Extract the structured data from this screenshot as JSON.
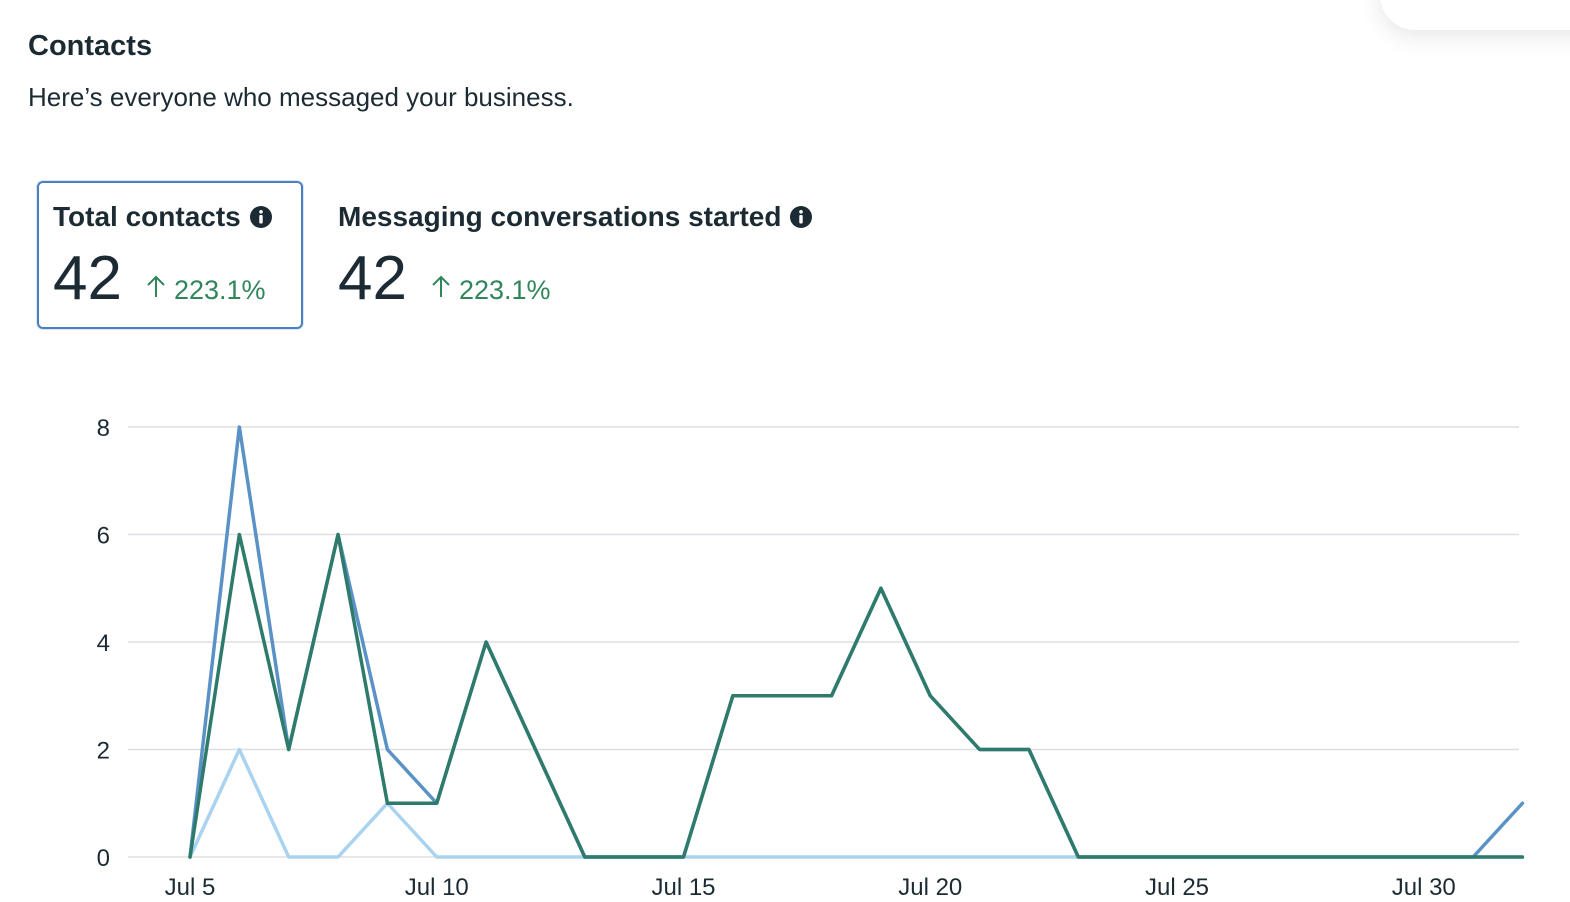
{
  "header": {
    "title": "Contacts",
    "subtitle": "Here’s everyone who messaged your business."
  },
  "metrics": [
    {
      "label": "Total contacts",
      "value": "42",
      "change": "223.1%",
      "change_direction": "up",
      "selected": true,
      "icon": "info-icon"
    },
    {
      "label": "Messaging conversations started",
      "value": "42",
      "change": "223.1%",
      "change_direction": "up",
      "selected": false,
      "icon": "info-icon"
    }
  ],
  "colors": {
    "accent_border": "#4a7fc1",
    "positive_change": "#31855b",
    "text": "#1c2b33",
    "grid": "#dddfe2"
  },
  "chart_data": {
    "type": "line",
    "x": [
      "Jul 5",
      "Jul 6",
      "Jul 7",
      "Jul 8",
      "Jul 9",
      "Jul 10",
      "Jul 11",
      "Jul 12",
      "Jul 13",
      "Jul 14",
      "Jul 15",
      "Jul 16",
      "Jul 17",
      "Jul 18",
      "Jul 19",
      "Jul 20",
      "Jul 21",
      "Jul 22",
      "Jul 23",
      "Jul 24",
      "Jul 25",
      "Jul 26",
      "Jul 27",
      "Jul 28",
      "Jul 29",
      "Jul 30",
      "Jul 31",
      "Aug 1"
    ],
    "x_tick_labels": [
      "Jul 5",
      "Jul 10",
      "Jul 15",
      "Jul 20",
      "Jul 25",
      "Jul 30"
    ],
    "y_ticks": [
      "0",
      "2",
      "4",
      "6",
      "8"
    ],
    "ylim": [
      0,
      8
    ],
    "grid": true,
    "series": [
      {
        "color": "#5a92c6",
        "values": [
          0,
          8,
          2,
          6,
          2,
          1,
          4,
          2,
          0,
          0,
          0,
          3,
          3,
          3,
          5,
          3,
          2,
          2,
          0,
          0,
          0,
          0,
          0,
          0,
          0,
          0,
          0,
          1
        ]
      },
      {
        "color": "#2e7a6b",
        "values": [
          0,
          6,
          2,
          6,
          1,
          1,
          4,
          2,
          0,
          0,
          0,
          3,
          3,
          3,
          5,
          3,
          2,
          2,
          0,
          0,
          0,
          0,
          0,
          0,
          0,
          0,
          0,
          0
        ]
      },
      {
        "color": "#a9d3ee",
        "values": [
          0,
          2,
          0,
          0,
          1,
          0,
          0,
          0,
          0,
          0,
          0,
          0,
          0,
          0,
          0,
          0,
          0,
          0,
          0,
          0,
          0,
          0,
          0,
          0,
          0,
          0,
          0,
          0
        ]
      }
    ]
  }
}
